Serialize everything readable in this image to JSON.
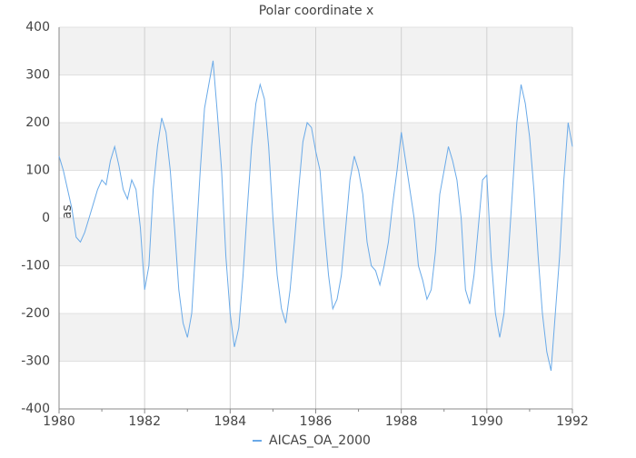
{
  "chart_data": {
    "type": "line",
    "title": "Polar coordinate x",
    "y_label": "mas",
    "x": [
      1980,
      1980.1,
      1980.2,
      1980.3,
      1980.4,
      1980.5,
      1980.6,
      1980.7,
      1980.8,
      1980.9,
      1981,
      1981.1,
      1981.2,
      1981.3,
      1981.4,
      1981.5,
      1981.6,
      1981.7,
      1981.8,
      1981.9,
      1982,
      1982.1,
      1982.2,
      1982.3,
      1982.4,
      1982.5,
      1982.6,
      1982.7,
      1982.8,
      1982.9,
      1983,
      1983.1,
      1983.2,
      1983.3,
      1983.4,
      1983.5,
      1983.6,
      1983.7,
      1983.8,
      1983.9,
      1984,
      1984.1,
      1984.2,
      1984.3,
      1984.4,
      1984.5,
      1984.6,
      1984.7,
      1984.8,
      1984.9,
      1985,
      1985.1,
      1985.2,
      1985.3,
      1985.4,
      1985.5,
      1985.6,
      1985.7,
      1985.8,
      1985.9,
      1986,
      1986.1,
      1986.2,
      1986.3,
      1986.4,
      1986.5,
      1986.6,
      1986.7,
      1986.8,
      1986.9,
      1987,
      1987.1,
      1987.2,
      1987.3,
      1987.4,
      1987.5,
      1987.6,
      1987.7,
      1987.8,
      1987.9,
      1988,
      1988.1,
      1988.2,
      1988.3,
      1988.4,
      1988.5,
      1988.6,
      1988.7,
      1988.8,
      1988.9,
      1989,
      1989.1,
      1989.2,
      1989.3,
      1989.4,
      1989.5,
      1989.6,
      1989.7,
      1989.8,
      1989.9,
      1990,
      1990.1,
      1990.2,
      1990.3,
      1990.4,
      1990.5,
      1990.6,
      1990.7,
      1990.8,
      1990.9,
      1991,
      1991.1,
      1991.2,
      1991.3,
      1991.4,
      1991.5,
      1991.6,
      1991.7,
      1991.8,
      1991.9,
      1992
    ],
    "series": [
      {
        "name": "AICAS_OA_2000",
        "color": "#6aaae8",
        "values": [
          130,
          100,
          60,
          20,
          -40,
          -50,
          -30,
          0,
          30,
          60,
          80,
          70,
          120,
          150,
          110,
          60,
          40,
          80,
          60,
          -20,
          -150,
          -100,
          60,
          150,
          210,
          180,
          100,
          -20,
          -150,
          -220,
          -250,
          -200,
          -50,
          100,
          230,
          280,
          330,
          220,
          100,
          -80,
          -200,
          -270,
          -230,
          -120,
          20,
          150,
          240,
          280,
          250,
          150,
          0,
          -120,
          -190,
          -220,
          -150,
          -50,
          60,
          160,
          200,
          190,
          140,
          100,
          -20,
          -120,
          -190,
          -170,
          -120,
          -20,
          80,
          130,
          100,
          50,
          -50,
          -100,
          -110,
          -140,
          -100,
          -50,
          30,
          100,
          180,
          120,
          60,
          0,
          -100,
          -130,
          -170,
          -150,
          -70,
          50,
          100,
          150,
          120,
          80,
          0,
          -150,
          -180,
          -120,
          -20,
          80,
          90,
          -80,
          -200,
          -250,
          -200,
          -80,
          60,
          200,
          280,
          240,
          170,
          60,
          -80,
          -200,
          -280,
          -320,
          -200,
          -80,
          80,
          200,
          150
        ]
      }
    ],
    "xlim": [
      1980,
      1992
    ],
    "xticks": [
      1980,
      1982,
      1984,
      1986,
      1988,
      1990,
      1992
    ],
    "ylim": [
      -400,
      400
    ],
    "yticks": [
      -400,
      -300,
      -200,
      -100,
      0,
      100,
      200,
      300,
      400
    ],
    "grid": true,
    "legend": "bottom"
  }
}
